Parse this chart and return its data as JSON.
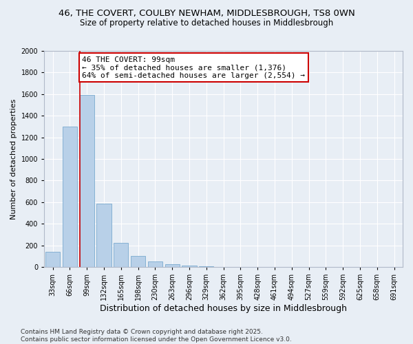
{
  "title": "46, THE COVERT, COULBY NEWHAM, MIDDLESBROUGH, TS8 0WN",
  "subtitle": "Size of property relative to detached houses in Middlesbrough",
  "xlabel": "Distribution of detached houses by size in Middlesbrough",
  "ylabel": "Number of detached properties",
  "categories": [
    "33sqm",
    "66sqm",
    "99sqm",
    "132sqm",
    "165sqm",
    "198sqm",
    "230sqm",
    "263sqm",
    "296sqm",
    "329sqm",
    "362sqm",
    "395sqm",
    "428sqm",
    "461sqm",
    "494sqm",
    "527sqm",
    "559sqm",
    "592sqm",
    "625sqm",
    "658sqm",
    "691sqm"
  ],
  "values": [
    140,
    1300,
    1590,
    585,
    220,
    100,
    50,
    25,
    10,
    5,
    2,
    0,
    0,
    0,
    0,
    0,
    0,
    0,
    0,
    0,
    0
  ],
  "bar_color": "#b8d0e8",
  "bar_edge_color": "#7aaace",
  "background_color": "#e8eef5",
  "grid_color": "#ffffff",
  "vline_x_index": 2,
  "vline_color": "#cc0000",
  "annotation_line1": "46 THE COVERT: 99sqm",
  "annotation_line2": "← 35% of detached houses are smaller (1,376)",
  "annotation_line3": "64% of semi-detached houses are larger (2,554) →",
  "annotation_box_color": "#cc0000",
  "ylim": [
    0,
    2000
  ],
  "yticks": [
    0,
    200,
    400,
    600,
    800,
    1000,
    1200,
    1400,
    1600,
    1800,
    2000
  ],
  "footer_line1": "Contains HM Land Registry data © Crown copyright and database right 2025.",
  "footer_line2": "Contains public sector information licensed under the Open Government Licence v3.0.",
  "title_fontsize": 9.5,
  "subtitle_fontsize": 8.5,
  "xlabel_fontsize": 9,
  "ylabel_fontsize": 8,
  "tick_fontsize": 7,
  "annotation_fontsize": 8,
  "footer_fontsize": 6.5
}
